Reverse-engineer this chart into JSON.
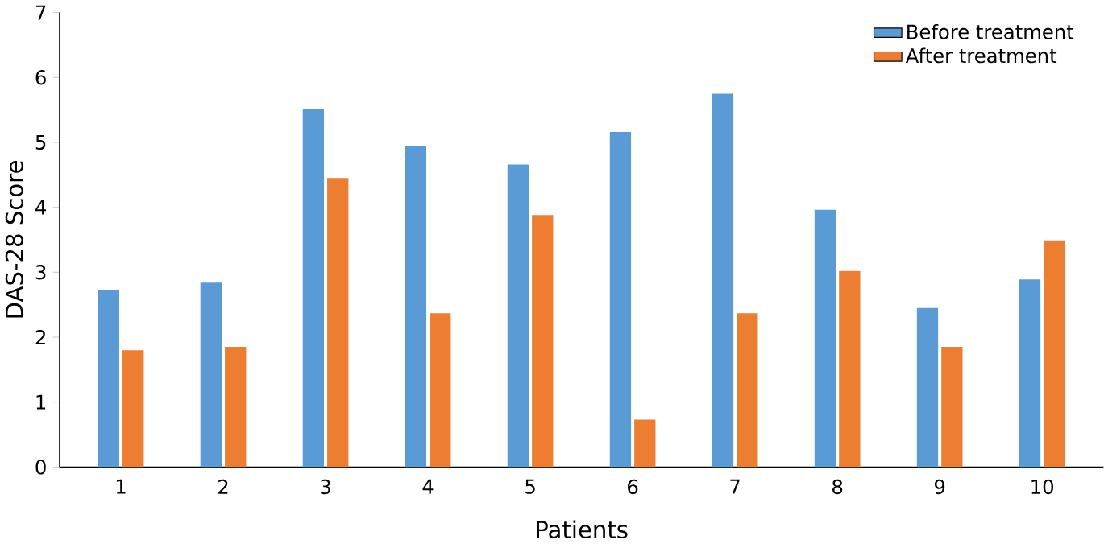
{
  "chart_data": {
    "type": "bar",
    "xlabel": "Patients",
    "ylabel": "DAS-28  Score",
    "categories": [
      "1",
      "2",
      "3",
      "4",
      "5",
      "6",
      "7",
      "8",
      "9",
      "10"
    ],
    "series": [
      {
        "name": "Before treatment",
        "color": "#5b9bd5",
        "values": [
          2.73,
          2.84,
          5.52,
          4.95,
          4.66,
          5.16,
          5.75,
          3.96,
          2.45,
          2.89
        ]
      },
      {
        "name": "After treatment",
        "color": "#ed7d31",
        "values": [
          1.8,
          1.85,
          4.45,
          2.37,
          3.88,
          0.73,
          2.37,
          3.02,
          1.85,
          3.49
        ]
      }
    ],
    "ylim": [
      0,
      7
    ],
    "yticks": [
      0,
      1,
      2,
      3,
      4,
      5,
      6,
      7
    ],
    "grid": false,
    "legend": "top right"
  }
}
